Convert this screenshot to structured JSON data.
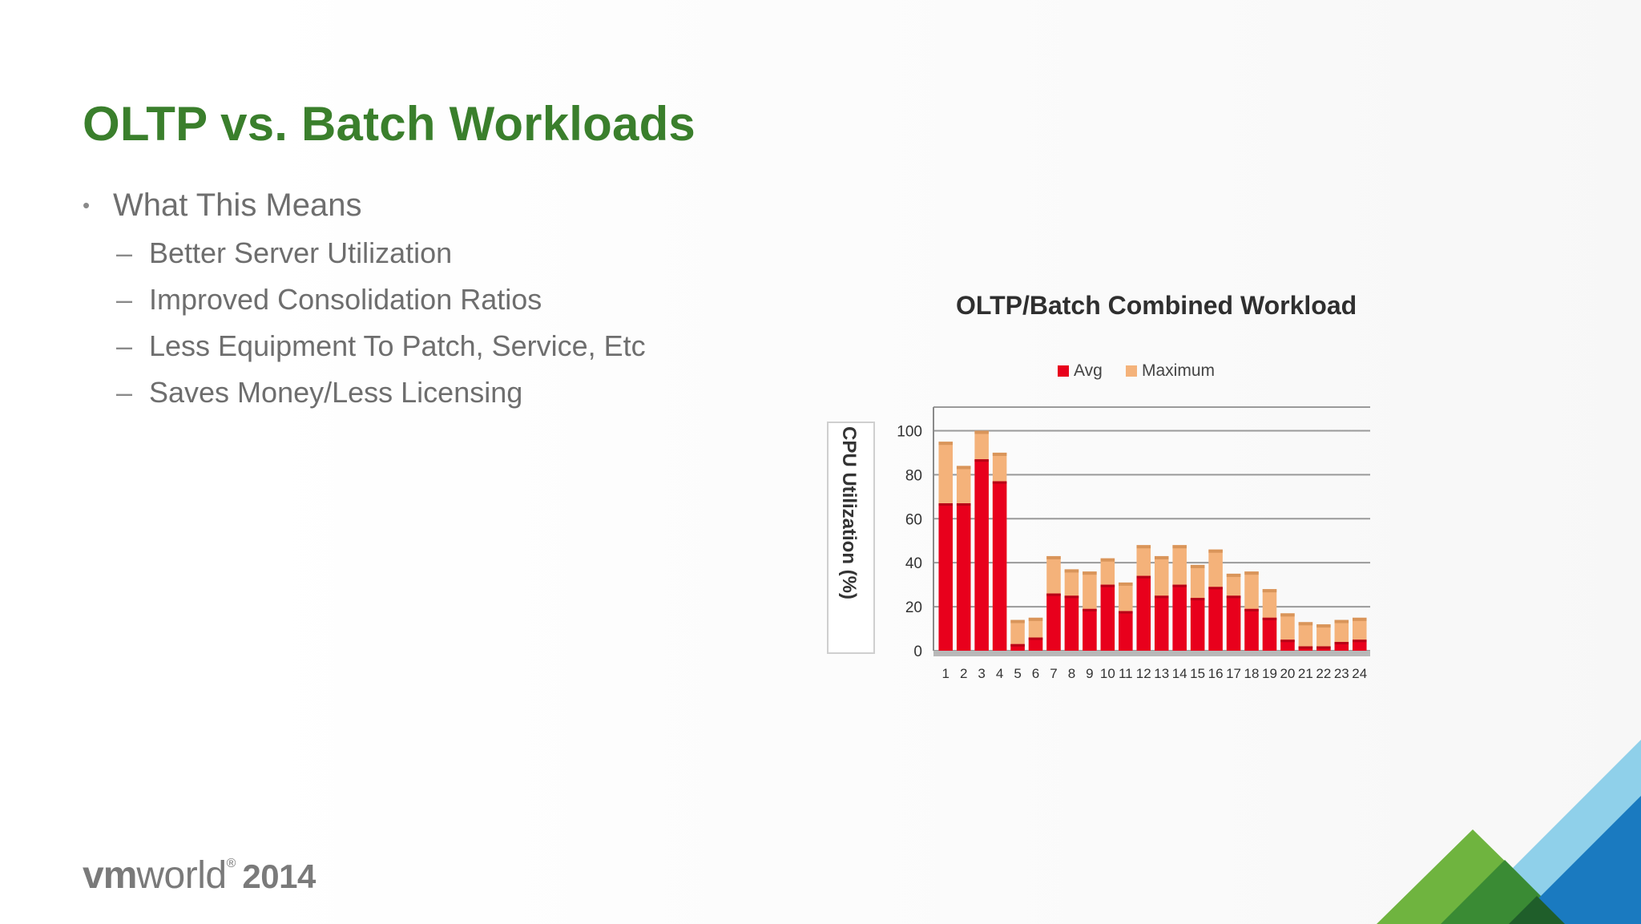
{
  "slide": {
    "title": "OLTP vs. Batch Workloads",
    "bullets": {
      "heading": "What This Means",
      "items": [
        "Better Server Utilization",
        "Improved Consolidation Ratios",
        "Less Equipment To Patch, Service, Etc",
        "Saves Money/Less Licensing"
      ]
    },
    "logo": {
      "vm": "vm",
      "world": "world",
      "registered": "®",
      "year": "2014"
    },
    "colors": {
      "title": "#3a7f2c",
      "avg": "#e8001c",
      "maximum": "#f4b27a"
    }
  },
  "chart_data": {
    "type": "bar",
    "title": "OLTP/Batch Combined Workload",
    "xlabel": "",
    "ylabel": "CPU Utilization (%)",
    "ylim": [
      0,
      110
    ],
    "yticks": [
      0,
      20,
      40,
      60,
      80,
      100
    ],
    "categories": [
      "1",
      "2",
      "3",
      "4",
      "5",
      "6",
      "7",
      "8",
      "9",
      "10",
      "11",
      "12",
      "13",
      "14",
      "15",
      "16",
      "17",
      "18",
      "19",
      "20",
      "21",
      "22",
      "23",
      "24"
    ],
    "series": [
      {
        "name": "Avg",
        "values": [
          67,
          67,
          87,
          77,
          3,
          6,
          26,
          25,
          19,
          30,
          18,
          34,
          25,
          30,
          24,
          29,
          25,
          19,
          15,
          5,
          2,
          2,
          4,
          5
        ]
      },
      {
        "name": "Maximum",
        "values": [
          95,
          84,
          100,
          90,
          14,
          15,
          43,
          37,
          36,
          42,
          31,
          48,
          43,
          48,
          39,
          46,
          35,
          36,
          28,
          17,
          13,
          12,
          14,
          15
        ]
      }
    ],
    "stacked_overlay": true,
    "legend_position": "top",
    "grid": true
  }
}
